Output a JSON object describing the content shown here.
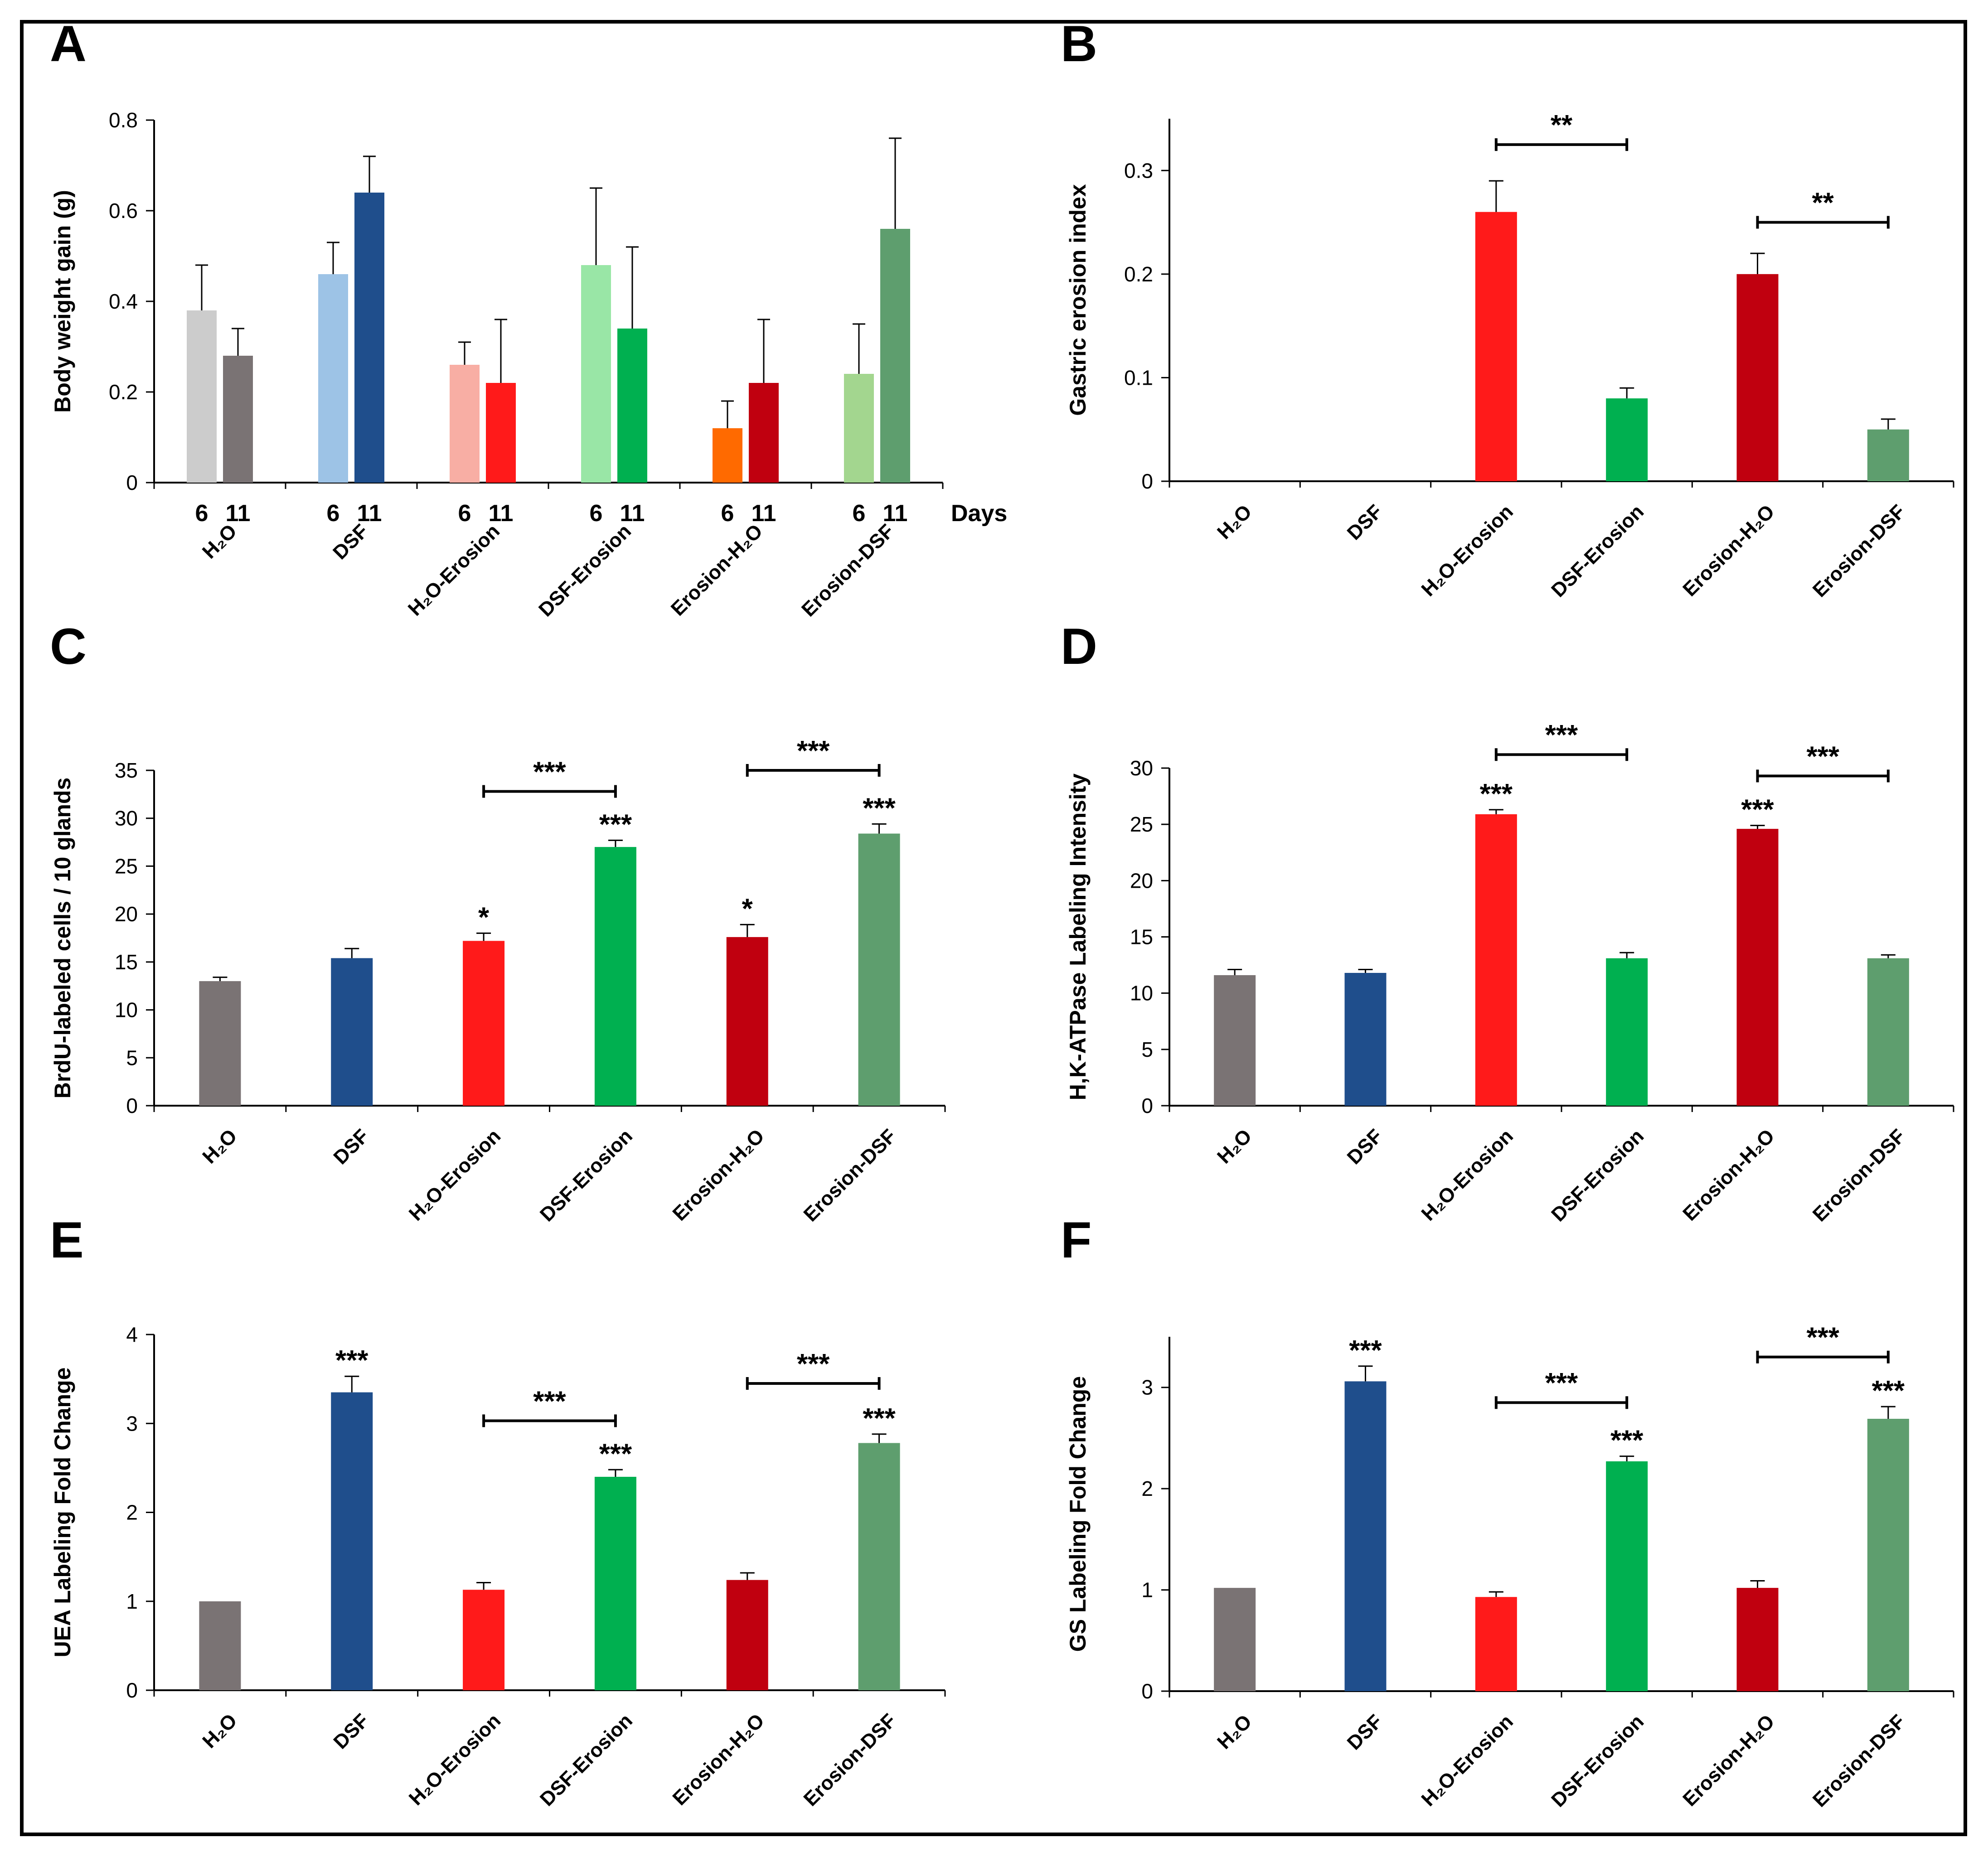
{
  "figure": {
    "panel_count": 6
  },
  "chart_data": [
    {
      "panel": "A",
      "type": "bar",
      "ylabel": "Body weight gain (g)",
      "xlabel": "Days",
      "ylim": [
        0,
        0.8
      ],
      "yticks": [
        0,
        0.2,
        0.4,
        0.6,
        0.8
      ],
      "ytick_labels": [
        "0",
        "0.2",
        "0.4",
        "0.6",
        "0.8"
      ],
      "categories": [
        "H2O",
        "DSF",
        "H2O-Erosion",
        "DSF-Erosion",
        "Erosion-H2O",
        "Erosion-DSF"
      ],
      "category_labels": [
        "H₂O",
        "DSF",
        "H₂O-Erosion",
        "DSF-Erosion",
        "Erosion-H₂O",
        "Erosion-DSF"
      ],
      "subgroups": [
        "6",
        "11"
      ],
      "values": [
        [
          0.38,
          0.28
        ],
        [
          0.46,
          0.64
        ],
        [
          0.26,
          0.22
        ],
        [
          0.48,
          0.34
        ],
        [
          0.12,
          0.22
        ],
        [
          0.24,
          0.56
        ]
      ],
      "errors": [
        [
          0.1,
          0.06
        ],
        [
          0.07,
          0.08
        ],
        [
          0.05,
          0.14
        ],
        [
          0.17,
          0.18
        ],
        [
          0.06,
          0.14
        ],
        [
          0.11,
          0.2
        ]
      ],
      "colors": [
        [
          "#cccccc",
          "#7a7374"
        ],
        [
          "#9dc3e6",
          "#1f4e8c"
        ],
        [
          "#f8aea4",
          "#ff1a1a"
        ],
        [
          "#99e6a6",
          "#00b050"
        ],
        [
          "#ff6a00",
          "#c0000f"
        ],
        [
          "#a3d68f",
          "#5e9e6e"
        ]
      ],
      "significance": []
    },
    {
      "panel": "B",
      "type": "bar",
      "ylabel": "Gastric erosion index",
      "ylim": [
        0,
        0.35
      ],
      "yticks": [
        0,
        0.1,
        0.2,
        0.3
      ],
      "ytick_labels": [
        "0",
        "0.1",
        "0.2",
        "0.3"
      ],
      "categories": [
        "H2O",
        "DSF",
        "H2O-Erosion",
        "DSF-Erosion",
        "Erosion-H2O",
        "Erosion-DSF"
      ],
      "category_labels": [
        "H₂O",
        "DSF",
        "H₂O-Erosion",
        "DSF-Erosion",
        "Erosion-H₂O",
        "Erosion-DSF"
      ],
      "values": [
        0,
        0,
        0.26,
        0.08,
        0.2,
        0.05
      ],
      "errors": [
        0,
        0,
        0.03,
        0.01,
        0.02,
        0.01
      ],
      "colors": [
        "#7a7374",
        "#1f4e8c",
        "#ff1a1a",
        "#00b050",
        "#c0000f",
        "#5e9e6e"
      ],
      "bar_stars": [
        "",
        "",
        "",
        "",
        "",
        ""
      ],
      "significance": [
        {
          "from": 2,
          "to": 3,
          "label": "**",
          "y": 0.325
        },
        {
          "from": 4,
          "to": 5,
          "label": "**",
          "y": 0.25
        }
      ]
    },
    {
      "panel": "C",
      "type": "bar",
      "ylabel": "BrdU-labeled cells / 10 glands",
      "ylim": [
        0,
        35
      ],
      "yticks": [
        0,
        5,
        10,
        15,
        20,
        25,
        30,
        35
      ],
      "ytick_labels": [
        "0",
        "5",
        "10",
        "15",
        "20",
        "25",
        "30",
        "35"
      ],
      "categories": [
        "H2O",
        "DSF",
        "H2O-Erosion",
        "DSF-Erosion",
        "Erosion-H2O",
        "Erosion-DSF"
      ],
      "category_labels": [
        "H₂O",
        "DSF",
        "H₂O-Erosion",
        "DSF-Erosion",
        "Erosion-H₂O",
        "Erosion-DSF"
      ],
      "values": [
        13,
        15.4,
        17.2,
        27,
        17.6,
        28.4
      ],
      "errors": [
        0.4,
        1.0,
        0.8,
        0.7,
        1.3,
        1.0
      ],
      "colors": [
        "#7a7374",
        "#1f4e8c",
        "#ff1a1a",
        "#00b050",
        "#c0000f",
        "#5e9e6e"
      ],
      "bar_stars": [
        "",
        "",
        "*",
        "***",
        "*",
        "***"
      ],
      "significance": [
        {
          "from": 2,
          "to": 3,
          "label": "***",
          "y": 32.8
        },
        {
          "from": 4,
          "to": 5,
          "label": "***",
          "y": 35
        }
      ]
    },
    {
      "panel": "D",
      "type": "bar",
      "ylabel": "H,K-ATPase Labeling Intensity",
      "ylim": [
        0,
        30
      ],
      "yticks": [
        0,
        5,
        10,
        15,
        20,
        25,
        30
      ],
      "ytick_labels": [
        "0",
        "5",
        "10",
        "15",
        "20",
        "25",
        "30"
      ],
      "categories": [
        "H2O",
        "DSF",
        "H2O-Erosion",
        "DSF-Erosion",
        "Erosion-H2O",
        "Erosion-DSF"
      ],
      "category_labels": [
        "H₂O",
        "DSF",
        "H₂O-Erosion",
        "DSF-Erosion",
        "Erosion-H₂O",
        "Erosion-DSF"
      ],
      "values": [
        11.6,
        11.8,
        25.9,
        13.1,
        24.6,
        13.1
      ],
      "errors": [
        0.5,
        0.3,
        0.4,
        0.5,
        0.3,
        0.3
      ],
      "colors": [
        "#7a7374",
        "#1f4e8c",
        "#ff1a1a",
        "#00b050",
        "#c0000f",
        "#5e9e6e"
      ],
      "bar_stars": [
        "",
        "",
        "***",
        "",
        "***",
        ""
      ],
      "significance": [
        {
          "from": 2,
          "to": 3,
          "label": "***",
          "y": 31.2
        },
        {
          "from": 4,
          "to": 5,
          "label": "***",
          "y": 29.3
        }
      ]
    },
    {
      "panel": "E",
      "type": "bar",
      "ylabel": "UEA Labeling Fold Change",
      "ylim": [
        0,
        4
      ],
      "yticks": [
        0,
        1,
        2,
        3,
        4
      ],
      "ytick_labels": [
        "0",
        "1",
        "2",
        "3",
        "4"
      ],
      "categories": [
        "H2O",
        "DSF",
        "H2O-Erosion",
        "DSF-Erosion",
        "Erosion-H2O",
        "Erosion-DSF"
      ],
      "category_labels": [
        "H₂O",
        "DSF",
        "H₂O-Erosion",
        "DSF-Erosion",
        "Erosion-H₂O",
        "Erosion-DSF"
      ],
      "values": [
        1.0,
        3.35,
        1.13,
        2.4,
        1.24,
        2.78
      ],
      "errors": [
        0,
        0.18,
        0.08,
        0.08,
        0.08,
        0.1
      ],
      "colors": [
        "#7a7374",
        "#1f4e8c",
        "#ff1a1a",
        "#00b050",
        "#c0000f",
        "#5e9e6e"
      ],
      "bar_stars": [
        "",
        "***",
        "",
        "***",
        "",
        "***"
      ],
      "significance": [
        {
          "from": 2,
          "to": 3,
          "label": "***",
          "y": 3.03
        },
        {
          "from": 4,
          "to": 5,
          "label": "***",
          "y": 3.45
        }
      ]
    },
    {
      "panel": "F",
      "type": "bar",
      "ylabel": "GS Labeling Fold Change",
      "ylim": [
        0,
        3.5
      ],
      "yticks": [
        0,
        1,
        2,
        3
      ],
      "ytick_labels": [
        "0",
        "1",
        "2",
        "3"
      ],
      "categories": [
        "H2O",
        "DSF",
        "H2O-Erosion",
        "DSF-Erosion",
        "Erosion-H2O",
        "Erosion-DSF"
      ],
      "category_labels": [
        "H₂O",
        "DSF",
        "H₂O-Erosion",
        "DSF-Erosion",
        "Erosion-H₂O",
        "Erosion-DSF"
      ],
      "values": [
        1.02,
        3.06,
        0.93,
        2.27,
        1.02,
        2.69
      ],
      "errors": [
        0,
        0.15,
        0.05,
        0.05,
        0.07,
        0.12
      ],
      "colors": [
        "#7a7374",
        "#1f4e8c",
        "#ff1a1a",
        "#00b050",
        "#c0000f",
        "#5e9e6e"
      ],
      "bar_stars": [
        "",
        "***",
        "",
        "***",
        "",
        "***"
      ],
      "significance": [
        {
          "from": 2,
          "to": 3,
          "label": "***",
          "y": 2.85
        },
        {
          "from": 4,
          "to": 5,
          "label": "***",
          "y": 3.3
        }
      ]
    }
  ]
}
